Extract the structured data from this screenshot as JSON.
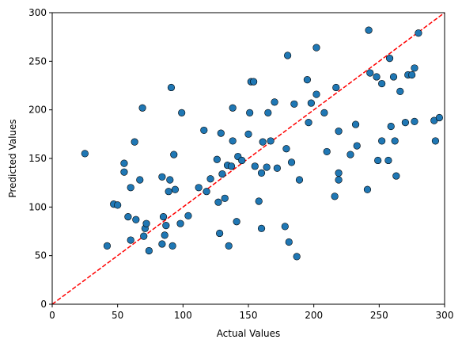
{
  "chart_data": {
    "type": "scatter",
    "xlabel": "Actual Values",
    "ylabel": "Predicted Values",
    "xlim": [
      0,
      300
    ],
    "ylim": [
      0,
      300
    ],
    "x_ticks": [
      0,
      50,
      100,
      150,
      200,
      250,
      300
    ],
    "y_ticks": [
      0,
      50,
      100,
      150,
      200,
      250,
      300
    ],
    "grid": false,
    "marker_color": "#1f77b4",
    "marker_edge_color": "#000000",
    "reference_line": {
      "style": "dashed",
      "color": "#ff0000",
      "from": [
        0,
        0
      ],
      "to": [
        300,
        300
      ]
    },
    "points": [
      {
        "x": 25,
        "y": 155
      },
      {
        "x": 42,
        "y": 60
      },
      {
        "x": 47,
        "y": 103
      },
      {
        "x": 50,
        "y": 102
      },
      {
        "x": 55,
        "y": 136
      },
      {
        "x": 55,
        "y": 145
      },
      {
        "x": 58,
        "y": 90
      },
      {
        "x": 60,
        "y": 66
      },
      {
        "x": 60,
        "y": 120
      },
      {
        "x": 63,
        "y": 167
      },
      {
        "x": 64,
        "y": 87
      },
      {
        "x": 67,
        "y": 128
      },
      {
        "x": 69,
        "y": 202
      },
      {
        "x": 70,
        "y": 70
      },
      {
        "x": 71,
        "y": 78
      },
      {
        "x": 72,
        "y": 83
      },
      {
        "x": 74,
        "y": 55
      },
      {
        "x": 84,
        "y": 62
      },
      {
        "x": 84,
        "y": 131
      },
      {
        "x": 85,
        "y": 90
      },
      {
        "x": 86,
        "y": 71
      },
      {
        "x": 87,
        "y": 81
      },
      {
        "x": 89,
        "y": 116
      },
      {
        "x": 90,
        "y": 128
      },
      {
        "x": 91,
        "y": 223
      },
      {
        "x": 92,
        "y": 60
      },
      {
        "x": 93,
        "y": 154
      },
      {
        "x": 94,
        "y": 118
      },
      {
        "x": 98,
        "y": 83
      },
      {
        "x": 99,
        "y": 197
      },
      {
        "x": 104,
        "y": 91
      },
      {
        "x": 112,
        "y": 120
      },
      {
        "x": 116,
        "y": 179
      },
      {
        "x": 118,
        "y": 116
      },
      {
        "x": 121,
        "y": 129
      },
      {
        "x": 126,
        "y": 149
      },
      {
        "x": 127,
        "y": 105
      },
      {
        "x": 128,
        "y": 73
      },
      {
        "x": 129,
        "y": 176
      },
      {
        "x": 130,
        "y": 134
      },
      {
        "x": 132,
        "y": 109
      },
      {
        "x": 134,
        "y": 143
      },
      {
        "x": 135,
        "y": 60
      },
      {
        "x": 137,
        "y": 142
      },
      {
        "x": 138,
        "y": 168
      },
      {
        "x": 138,
        "y": 202
      },
      {
        "x": 141,
        "y": 85
      },
      {
        "x": 142,
        "y": 152
      },
      {
        "x": 145,
        "y": 148
      },
      {
        "x": 150,
        "y": 175
      },
      {
        "x": 151,
        "y": 197
      },
      {
        "x": 152,
        "y": 229
      },
      {
        "x": 154,
        "y": 229
      },
      {
        "x": 155,
        "y": 142
      },
      {
        "x": 158,
        "y": 106
      },
      {
        "x": 160,
        "y": 78
      },
      {
        "x": 160,
        "y": 135
      },
      {
        "x": 161,
        "y": 167
      },
      {
        "x": 164,
        "y": 141
      },
      {
        "x": 165,
        "y": 197
      },
      {
        "x": 167,
        "y": 168
      },
      {
        "x": 170,
        "y": 208
      },
      {
        "x": 172,
        "y": 140
      },
      {
        "x": 178,
        "y": 80
      },
      {
        "x": 179,
        "y": 160
      },
      {
        "x": 180,
        "y": 256
      },
      {
        "x": 181,
        "y": 64
      },
      {
        "x": 183,
        "y": 146
      },
      {
        "x": 185,
        "y": 206
      },
      {
        "x": 187,
        "y": 49
      },
      {
        "x": 189,
        "y": 128
      },
      {
        "x": 195,
        "y": 231
      },
      {
        "x": 196,
        "y": 187
      },
      {
        "x": 198,
        "y": 207
      },
      {
        "x": 202,
        "y": 216
      },
      {
        "x": 202,
        "y": 264
      },
      {
        "x": 208,
        "y": 197
      },
      {
        "x": 210,
        "y": 157
      },
      {
        "x": 216,
        "y": 111
      },
      {
        "x": 217,
        "y": 223
      },
      {
        "x": 219,
        "y": 135
      },
      {
        "x": 219,
        "y": 128
      },
      {
        "x": 219,
        "y": 178
      },
      {
        "x": 228,
        "y": 154
      },
      {
        "x": 232,
        "y": 185
      },
      {
        "x": 233,
        "y": 163
      },
      {
        "x": 241,
        "y": 118
      },
      {
        "x": 242,
        "y": 282
      },
      {
        "x": 243,
        "y": 238
      },
      {
        "x": 248,
        "y": 234
      },
      {
        "x": 249,
        "y": 148
      },
      {
        "x": 252,
        "y": 227
      },
      {
        "x": 252,
        "y": 168
      },
      {
        "x": 257,
        "y": 148
      },
      {
        "x": 258,
        "y": 253
      },
      {
        "x": 259,
        "y": 183
      },
      {
        "x": 261,
        "y": 234
      },
      {
        "x": 262,
        "y": 168
      },
      {
        "x": 263,
        "y": 132
      },
      {
        "x": 266,
        "y": 219
      },
      {
        "x": 270,
        "y": 187
      },
      {
        "x": 272,
        "y": 236
      },
      {
        "x": 275,
        "y": 236
      },
      {
        "x": 277,
        "y": 243
      },
      {
        "x": 277,
        "y": 188
      },
      {
        "x": 280,
        "y": 279
      },
      {
        "x": 292,
        "y": 189
      },
      {
        "x": 293,
        "y": 168
      },
      {
        "x": 296,
        "y": 192
      }
    ]
  }
}
